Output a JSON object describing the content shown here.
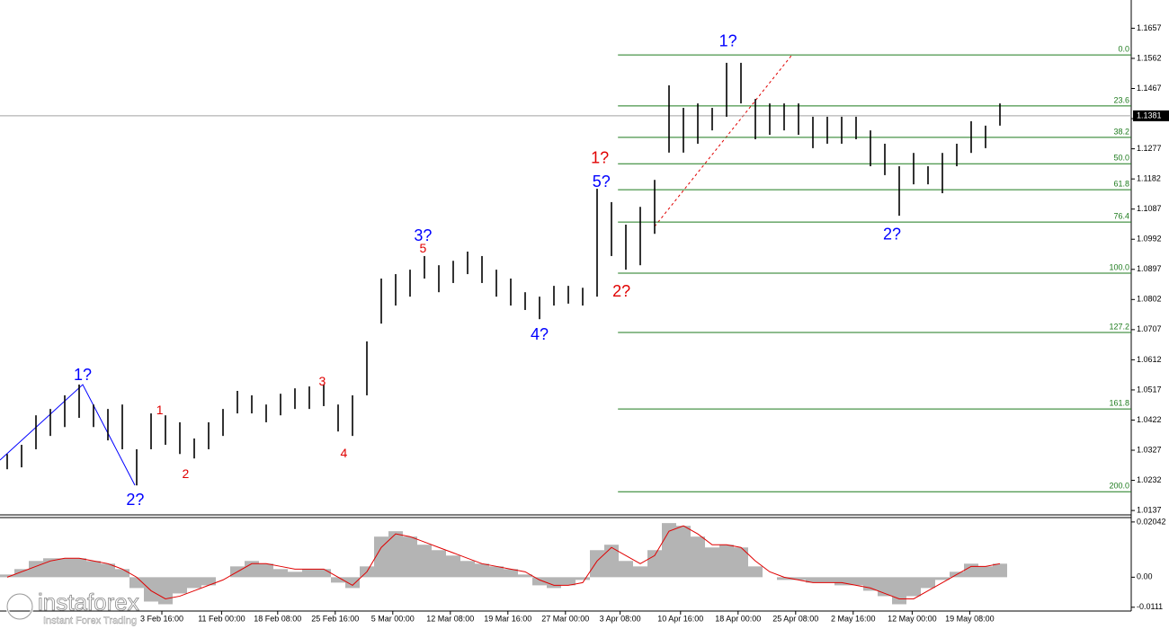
{
  "chart_data": {
    "type": "price-bars",
    "bar_color": "#000000",
    "xlim": [
      0,
      78.625
    ],
    "ylim": [
      1.0126,
      1.1746
    ],
    "yticks": [
      1.0137,
      1.0232,
      1.0327,
      1.0422,
      1.0517,
      1.0612,
      1.0707,
      1.0802,
      1.0897,
      1.0992,
      1.1087,
      1.1182,
      1.1277,
      1.1372,
      1.1467,
      1.1562,
      1.1657
    ],
    "xticks": [
      {
        "value": 11.25,
        "label": "3 Feb 16:00"
      },
      {
        "value": 15.4,
        "label": "11 Feb 00:00"
      },
      {
        "value": 19.3,
        "label": "18 Feb 08:00"
      },
      {
        "value": 23.3,
        "label": "25 Feb 16:00"
      },
      {
        "value": 27.3,
        "label": "5 Mar 00:00"
      },
      {
        "value": 31.3,
        "label": "12 Mar 08:00"
      },
      {
        "value": 35.3,
        "label": "19 Mar 16:00"
      },
      {
        "value": 39.3,
        "label": "27 Mar 00:00"
      },
      {
        "value": 43.1,
        "label": "3 Apr 08:00"
      },
      {
        "value": 47.3,
        "label": "10 Apr 16:00"
      },
      {
        "value": 51.3,
        "label": "18 Apr 00:00"
      },
      {
        "value": 55.3,
        "label": "25 Apr 08:00"
      },
      {
        "value": 59.3,
        "label": "2 May 16:00"
      },
      {
        "value": 63.4,
        "label": "12 May 00:00"
      },
      {
        "value": 67.4,
        "label": "19 May 08:00"
      }
    ],
    "x": [
      0.5,
      1.5,
      2.5,
      3.5,
      4.5,
      5.5,
      6.5,
      7.5,
      8.5,
      9.5,
      10.5,
      11.5,
      12.5,
      13.5,
      14.5,
      15.5,
      16.5,
      17.5,
      18.5,
      19.5,
      20.5,
      21.5,
      22.5,
      23.5,
      24.5,
      25.5,
      26.5,
      27.5,
      28.5,
      29.5,
      30.5,
      31.5,
      32.5,
      33.5,
      34.5,
      35.5,
      36.5,
      37.5,
      38.5,
      39.5,
      40.5,
      41.5,
      42.5,
      43.5,
      44.5,
      45.5,
      46.5,
      47.5,
      48.5,
      49.5,
      50.5,
      51.5,
      52.5,
      53.5,
      54.5,
      55.5,
      56.5,
      57.5,
      58.5,
      59.5,
      60.5,
      61.5,
      62.5,
      63.5,
      64.5,
      65.5,
      66.5,
      67.5,
      68.5,
      69.5
    ],
    "high": [
      1.0315,
      1.0344,
      1.0437,
      1.0457,
      1.05,
      1.0534,
      1.0471,
      1.0457,
      1.0471,
      1.033,
      1.0443,
      1.0437,
      1.0415,
      1.0364,
      1.0415,
      1.0457,
      1.0514,
      1.05,
      1.0471,
      1.0505,
      1.0522,
      1.0528,
      1.0534,
      1.0471,
      1.05,
      1.067,
      1.0868,
      1.0882,
      1.0896,
      1.0939,
      1.091,
      1.0924,
      1.0953,
      1.0939,
      1.0896,
      1.0868,
      1.0825,
      1.0811,
      1.0845,
      1.0845,
      1.0839,
      1.1151,
      1.1109,
      1.1038,
      1.1094,
      1.1179,
      1.1477,
      1.1406,
      1.142,
      1.1406,
      1.1548,
      1.1548,
      1.1434,
      1.142,
      1.142,
      1.142,
      1.1378,
      1.1378,
      1.1378,
      1.1378,
      1.1335,
      1.1293,
      1.1222,
      1.1264,
      1.1222,
      1.1264,
      1.1293,
      1.1364,
      1.135,
      1.142
    ],
    "low": [
      1.0267,
      1.0273,
      1.033,
      1.0372,
      1.04,
      1.0429,
      1.04,
      1.0358,
      1.033,
      1.0216,
      1.033,
      1.0344,
      1.0315,
      1.0301,
      1.033,
      1.0372,
      1.0443,
      1.0443,
      1.0415,
      1.0437,
      1.0457,
      1.0457,
      1.0466,
      1.0386,
      1.0372,
      1.05,
      1.0726,
      1.0783,
      1.0811,
      1.0868,
      1.0825,
      1.0854,
      1.0882,
      1.0854,
      1.0811,
      1.0783,
      1.0769,
      1.074,
      1.0783,
      1.0789,
      1.0783,
      1.0811,
      1.0939,
      1.0896,
      1.091,
      1.1009,
      1.1265,
      1.1265,
      1.1293,
      1.1335,
      1.1378,
      1.142,
      1.1307,
      1.1321,
      1.1335,
      1.1321,
      1.1279,
      1.1293,
      1.1293,
      1.1307,
      1.1222,
      1.1194,
      1.1066,
      1.1165,
      1.1165,
      1.1137,
      1.1222,
      1.1264,
      1.1279,
      1.135
    ],
    "current_price": 1.1381,
    "fib_color": "#1c7a1c",
    "fib_x_start": 42.95,
    "fib_levels": [
      {
        "label": "0.0",
        "price": 1.1573
      },
      {
        "label": "23.6",
        "price": 1.1412
      },
      {
        "label": "38.2",
        "price": 1.1313
      },
      {
        "label": "50.0",
        "price": 1.123
      },
      {
        "label": "61.8",
        "price": 1.1148
      },
      {
        "label": "76.4",
        "price": 1.1046
      },
      {
        "label": "100.0",
        "price": 1.0885
      },
      {
        "label": "127.2",
        "price": 1.0698
      },
      {
        "label": "161.8",
        "price": 1.0457
      },
      {
        "label": "200.0",
        "price": 1.0196
      }
    ],
    "annotations": [
      {
        "text": "1?",
        "color": "#0000ff",
        "x": 5.75,
        "y": 1.0562
      },
      {
        "text": "2?",
        "color": "#0000ff",
        "x": 9.4,
        "y": 1.0168
      },
      {
        "text": "1",
        "color": "#e00000",
        "x": 11.1,
        "y": 1.0451
      },
      {
        "text": "2",
        "color": "#e00000",
        "x": 12.9,
        "y": 1.025
      },
      {
        "text": "3",
        "color": "#e00000",
        "x": 22.4,
        "y": 1.0542
      },
      {
        "text": "4",
        "color": "#e00000",
        "x": 23.9,
        "y": 1.0315
      },
      {
        "text": "3?",
        "color": "#0000ff",
        "x": 29.4,
        "y": 1.1001
      },
      {
        "text": "5",
        "color": "#e00000",
        "x": 29.4,
        "y": 1.0961
      },
      {
        "text": "4?",
        "color": "#0000ff",
        "x": 37.5,
        "y": 1.0689
      },
      {
        "text": "1?",
        "color": "#e00000",
        "x": 41.7,
        "y": 1.1245
      },
      {
        "text": "5?",
        "color": "#0000ff",
        "x": 41.8,
        "y": 1.1171
      },
      {
        "text": "2?",
        "color": "#e00000",
        "x": 43.2,
        "y": 1.0825
      },
      {
        "text": "1?",
        "color": "#0000ff",
        "x": 50.6,
        "y": 1.1613
      },
      {
        "text": "2?",
        "color": "#0000ff",
        "x": 62,
        "y": 1.1004
      }
    ],
    "indicator": {
      "type": "macd",
      "ylim": [
        -0.0125,
        0.02204
      ],
      "yticks": [
        0.02042,
        {
          "value": 0,
          "label": "0.00"
        },
        -0.0111
      ],
      "histogram_color": "#b4b4b4",
      "signal_color": "#e00000",
      "histogram": [
        0.001,
        0.003,
        0.006,
        0.007,
        0.007,
        0.007,
        0.006,
        0.005,
        0.003,
        -0.004,
        -0.009,
        -0.01,
        -0.006,
        -0.004,
        -0.003,
        0.0,
        0.004,
        0.006,
        0.005,
        0.003,
        0.002,
        0.003,
        0.003,
        -0.002,
        -0.004,
        0.004,
        0.015,
        0.017,
        0.015,
        0.012,
        0.01,
        0.008,
        0.006,
        0.005,
        0.004,
        0.003,
        0.001,
        -0.003,
        -0.004,
        -0.003,
        -0.001,
        0.01,
        0.012,
        0.006,
        0.004,
        0.01,
        0.02,
        0.019,
        0.015,
        0.011,
        0.012,
        0.011,
        0.004,
        0.0,
        -0.001,
        -0.001,
        -0.002,
        -0.002,
        -0.003,
        -0.003,
        -0.005,
        -0.007,
        -0.01,
        -0.007,
        -0.004,
        -0.001,
        0.002,
        0.005,
        0.004,
        0.005
      ],
      "signal": [
        0.0,
        0.002,
        0.004,
        0.006,
        0.007,
        0.007,
        0.006,
        0.005,
        0.003,
        0.0,
        -0.005,
        -0.008,
        -0.007,
        -0.005,
        -0.003,
        -0.001,
        0.002,
        0.005,
        0.005,
        0.004,
        0.003,
        0.003,
        0.003,
        0.0,
        -0.003,
        0.002,
        0.011,
        0.016,
        0.015,
        0.013,
        0.011,
        0.009,
        0.007,
        0.005,
        0.004,
        0.003,
        0.002,
        -0.001,
        -0.003,
        -0.003,
        -0.002,
        0.006,
        0.011,
        0.008,
        0.005,
        0.008,
        0.017,
        0.019,
        0.016,
        0.012,
        0.012,
        0.011,
        0.006,
        0.002,
        0.0,
        -0.001,
        -0.002,
        -0.002,
        -0.002,
        -0.003,
        -0.004,
        -0.006,
        -0.008,
        -0.008,
        -0.005,
        -0.002,
        0.001,
        0.004,
        0.004,
        0.005
      ]
    },
    "watermark": {
      "brand": "instaforex",
      "tagline": "Instant Forex Trading"
    }
  }
}
